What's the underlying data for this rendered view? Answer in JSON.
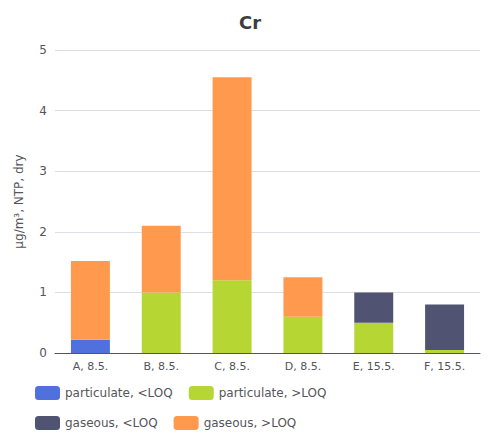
{
  "chart_data": {
    "type": "bar",
    "title": "Cr",
    "ylabel": "μg/m³, NTP, dry",
    "categories": [
      "A, 8.5.",
      "B, 8.5.",
      "C, 8.5.",
      "D, 8.5.",
      "E, 15.5.",
      "F, 15.5."
    ],
    "series": [
      {
        "name": "particulate, <LOQ",
        "values": [
          0.22,
          0.0,
          0.0,
          0.0,
          0.0,
          0.0
        ]
      },
      {
        "name": "particulate, >LOQ",
        "values": [
          0.0,
          1.0,
          1.2,
          0.6,
          0.5,
          0.05
        ]
      },
      {
        "name": "gaseous, <LOQ",
        "values": [
          0.0,
          0.0,
          0.0,
          0.0,
          0.5,
          0.75
        ]
      },
      {
        "name": "gaseous, >LOQ",
        "values": [
          1.3,
          1.1,
          3.35,
          0.65,
          0.0,
          0.0
        ]
      }
    ],
    "stacked": true,
    "ylim": [
      0,
      5
    ],
    "yticks": [
      0,
      1,
      2,
      3,
      4,
      5
    ],
    "grid": true,
    "legend": "bottom"
  }
}
